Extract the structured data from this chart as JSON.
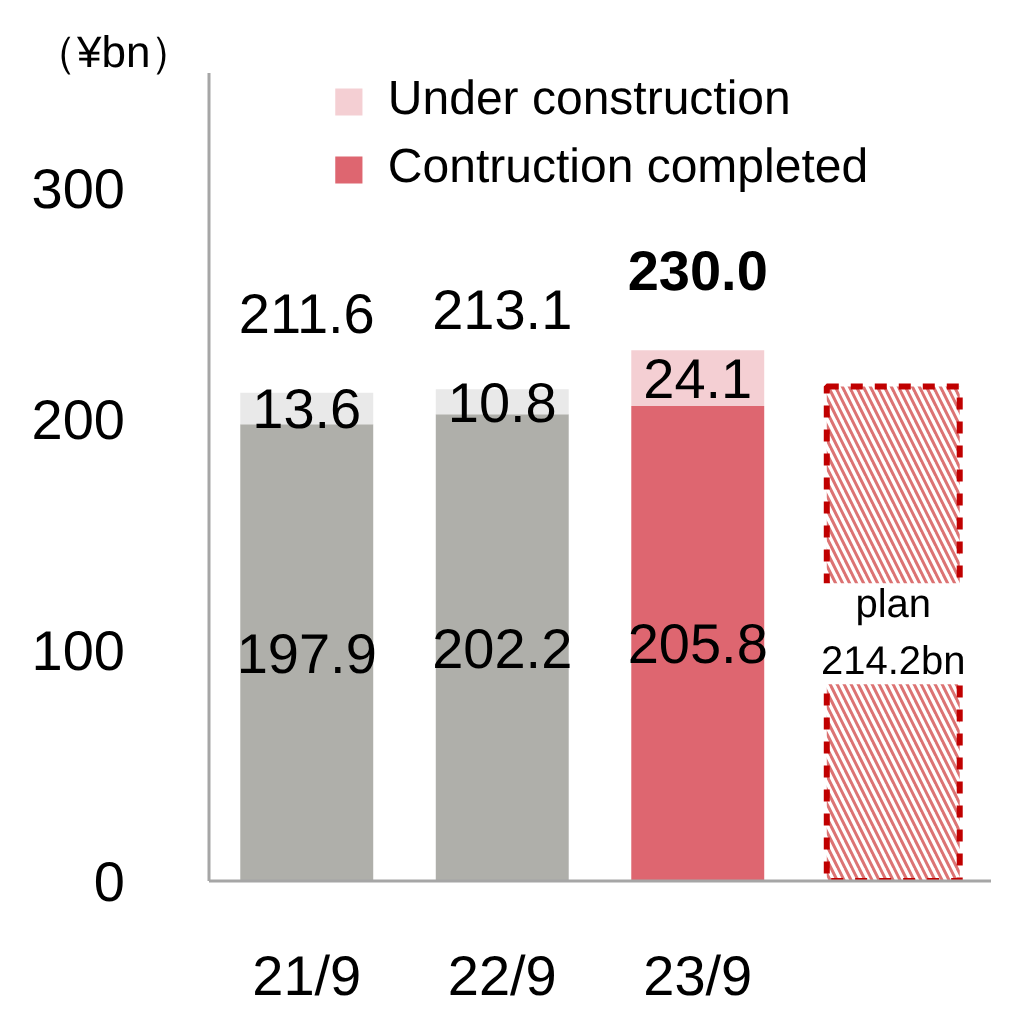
{
  "chart_data": {
    "type": "bar",
    "stacked": true,
    "ylabel": "（¥bn）",
    "categories": [
      "21/9",
      "22/9",
      "23/9",
      null
    ],
    "series": [
      {
        "name": "Contruction completed",
        "color": "#de6670",
        "colors": [
          "#afafaa",
          "#afafaa",
          "#de6670",
          null
        ],
        "values": [
          197.9,
          202.2,
          205.8,
          null
        ]
      },
      {
        "name": "Under construction",
        "color": "#f4cfd3",
        "colors": [
          "#e9e9e9",
          "#e9e9e9",
          "#f4cfd3",
          null
        ],
        "values": [
          13.6,
          10.8,
          24.1,
          null
        ]
      },
      {
        "color": "#c00000",
        "line_style": "dashed",
        "values": [
          null,
          null,
          null,
          214.2
        ],
        "value_labels": [
          null,
          null,
          null,
          "plan\n214.2bn"
        ]
      }
    ],
    "totals": [
      "211.6",
      "213.1",
      "230.0",
      null
    ],
    "data_labels": true,
    "ylim": [
      0,
      350
    ],
    "yticks": [
      0,
      100,
      200,
      300
    ],
    "legend": "top"
  }
}
